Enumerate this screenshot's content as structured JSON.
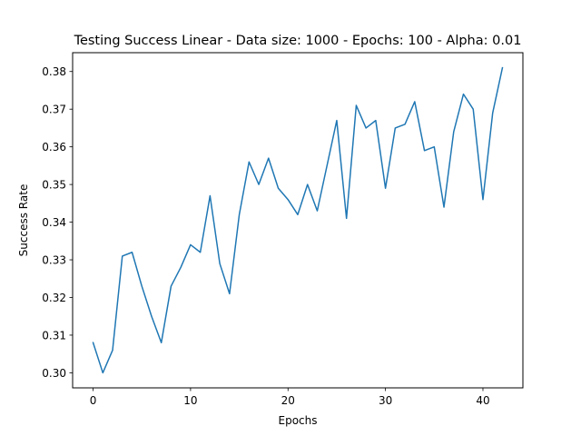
{
  "chart_data": {
    "type": "line",
    "title": "Testing Success Linear - Data size: 1000 - Epochs: 100 - Alpha: 0.01",
    "xlabel": "Epochs",
    "ylabel": "Success Rate",
    "xlim": [
      -2.1,
      44.1
    ],
    "ylim": [
      0.296,
      0.385
    ],
    "x_ticks": [
      0,
      10,
      20,
      30,
      40
    ],
    "x_tick_labels": [
      "0",
      "10",
      "20",
      "30",
      "40"
    ],
    "y_ticks": [
      0.3,
      0.31,
      0.32,
      0.33,
      0.34,
      0.35,
      0.36,
      0.37,
      0.38
    ],
    "y_tick_labels": [
      "0.30",
      "0.31",
      "0.32",
      "0.33",
      "0.34",
      "0.35",
      "0.36",
      "0.37",
      "0.38"
    ],
    "grid": false,
    "legend": "none",
    "series": [
      {
        "color": "#1f77b4",
        "x": [
          0,
          1,
          2,
          3,
          4,
          5,
          6,
          7,
          8,
          9,
          10,
          11,
          12,
          13,
          14,
          15,
          16,
          17,
          18,
          19,
          20,
          21,
          22,
          23,
          24,
          25,
          26,
          27,
          28,
          29,
          30,
          31,
          32,
          33,
          34,
          35,
          36,
          37,
          38,
          39,
          40,
          41,
          42
        ],
        "values": [
          0.308,
          0.3,
          0.306,
          0.331,
          0.332,
          0.323,
          0.315,
          0.308,
          0.323,
          0.328,
          0.334,
          0.332,
          0.347,
          0.329,
          0.321,
          0.342,
          0.356,
          0.35,
          0.357,
          0.349,
          0.346,
          0.342,
          0.35,
          0.343,
          0.355,
          0.367,
          0.341,
          0.371,
          0.365,
          0.367,
          0.349,
          0.365,
          0.366,
          0.372,
          0.359,
          0.36,
          0.344,
          0.364,
          0.374,
          0.37,
          0.346,
          0.369,
          0.381
        ]
      }
    ]
  }
}
